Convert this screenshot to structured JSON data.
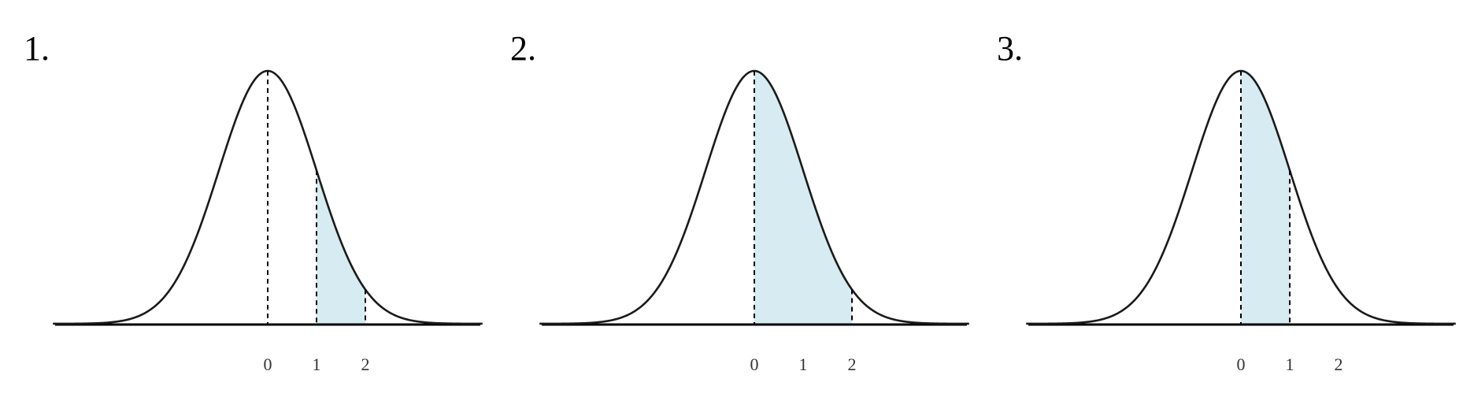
{
  "colors": {
    "curve": "#1a1a1a",
    "shade_fill": "#d6ebf2",
    "axis": "#000000",
    "dashed": "#000000"
  },
  "chart_data": [
    {
      "type": "area",
      "panel_label": "1.",
      "distribution": "normal",
      "mean": 0,
      "sd": 1,
      "x_tick_labels": [
        "0",
        "1",
        "2"
      ],
      "x_ticks": [
        0,
        1,
        2
      ],
      "dashed_lines_at": [
        0,
        1,
        2
      ],
      "shaded_region": [
        1,
        2
      ],
      "xlim": [
        -4.4,
        4.4
      ],
      "grid": false
    },
    {
      "type": "area",
      "panel_label": "2.",
      "distribution": "normal",
      "mean": 0,
      "sd": 1,
      "x_tick_labels": [
        "0",
        "1",
        "2"
      ],
      "x_ticks": [
        0,
        1,
        2
      ],
      "dashed_lines_at": [
        0,
        2
      ],
      "shaded_region": [
        0,
        2
      ],
      "xlim": [
        -4.4,
        4.4
      ],
      "grid": false
    },
    {
      "type": "area",
      "panel_label": "3.",
      "distribution": "normal",
      "mean": 0,
      "sd": 1,
      "x_tick_labels": [
        "0",
        "1",
        "2"
      ],
      "x_ticks": [
        0,
        1,
        2
      ],
      "dashed_lines_at": [
        0,
        1
      ],
      "shaded_region": [
        0,
        1
      ],
      "xlim": [
        -4.4,
        4.4
      ],
      "grid": false
    }
  ]
}
